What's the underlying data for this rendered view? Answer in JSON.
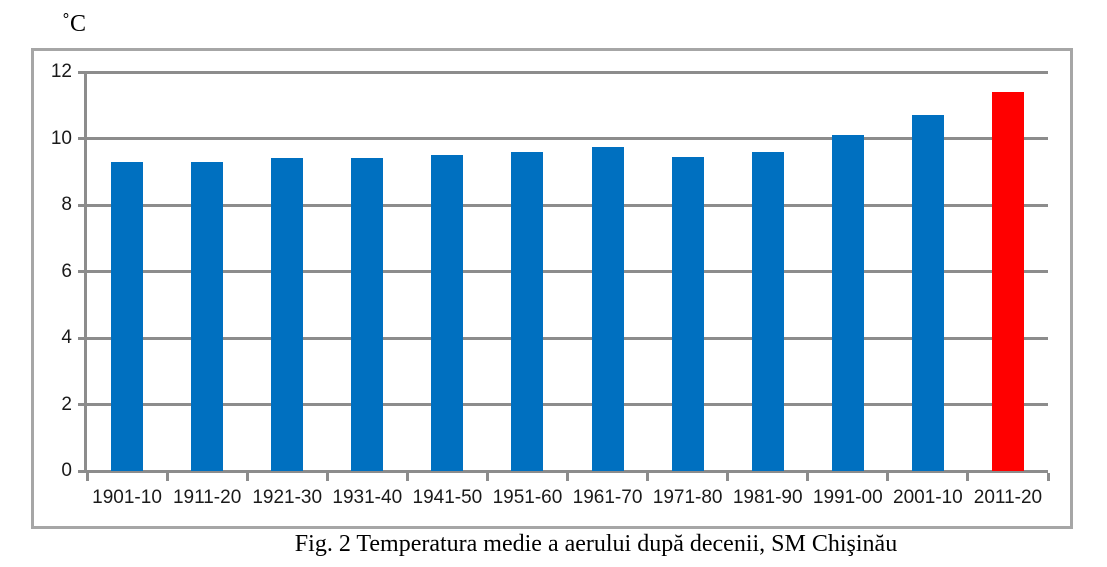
{
  "page": {
    "background_color": "#ffffff",
    "unit_label": "˚C",
    "caption": "Fig. 2 Temperatura medie a aerului după decenii, SM Chişinău"
  },
  "chart_data": {
    "type": "bar",
    "title": "",
    "xlabel": "",
    "ylabel": "˚C",
    "caption": "Fig. 2 Temperatura medie a aerului după decenii, SM Chişinău",
    "categories": [
      "1901-10",
      "1911-20",
      "1921-30",
      "1931-40",
      "1941-50",
      "1951-60",
      "1961-70",
      "1971-80",
      "1981-90",
      "1991-00",
      "2001-10",
      "2011-20"
    ],
    "values": [
      9.3,
      9.3,
      9.4,
      9.4,
      9.5,
      9.6,
      9.75,
      9.45,
      9.6,
      10.1,
      10.7,
      11.4
    ],
    "bar_colors": [
      "#0070C0",
      "#0070C0",
      "#0070C0",
      "#0070C0",
      "#0070C0",
      "#0070C0",
      "#0070C0",
      "#0070C0",
      "#0070C0",
      "#0070C0",
      "#0070C0",
      "#FF0000"
    ],
    "default_bar_color": "#0070C0",
    "highlight_bar_color": "#FF0000",
    "highlight_category": "2011-20",
    "ylim": [
      0,
      12
    ],
    "yticks": [
      0,
      2,
      4,
      6,
      8,
      10,
      12
    ],
    "grid": true,
    "legend": false,
    "gridline_color": "#8c8c8c",
    "axis_color": "#8c8c8c",
    "frame_border_color": "#a6a6a6",
    "tick_label_color": "#1a1a1a"
  }
}
